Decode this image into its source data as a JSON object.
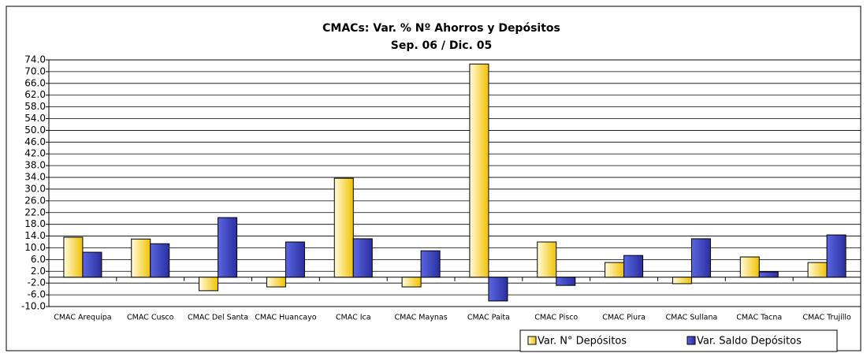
{
  "chart_data": {
    "type": "bar",
    "title": "CMACs: Var. % Nº Ahorros y Depósitos",
    "subtitle": "Sep. 06 / Dic. 05",
    "categories": [
      "CMAC Arequipa",
      "CMAC Cusco",
      "CMAC Del Santa",
      "CMAC Huancayo",
      "CMAC Ica",
      "CMAC Maynas",
      "CMAC Paita",
      "CMAC Pisco",
      "CMAC Piura",
      "CMAC Sullana",
      "CMAC Tacna",
      "CMAC Trujillo"
    ],
    "series": [
      {
        "name": "Var. N° Depósitos",
        "color": "#f2c200",
        "values": [
          13.6,
          13.0,
          -4.6,
          -3.3,
          33.7,
          -3.3,
          72.6,
          12.0,
          5.0,
          -2.2,
          6.9,
          5.0
        ]
      },
      {
        "name": "Var. Saldo Depósitos",
        "color": "#2a2fa0",
        "values": [
          8.5,
          11.4,
          20.3,
          12.0,
          13.1,
          9.0,
          -8.1,
          -2.8,
          7.4,
          13.1,
          1.8,
          14.4
        ]
      }
    ],
    "ylim": [
      -10,
      74
    ],
    "yticks": [
      {
        "value": -10,
        "label": "-10.0"
      },
      {
        "value": -6,
        "label": "-6.0"
      },
      {
        "value": -2,
        "label": "-2.0"
      },
      {
        "value": 2,
        "label": "2.0"
      },
      {
        "value": 6,
        "label": "6.0"
      },
      {
        "value": 10,
        "label": "10.0"
      },
      {
        "value": 14,
        "label": "14.0"
      },
      {
        "value": 18,
        "label": "18.0"
      },
      {
        "value": 22,
        "label": "22.0"
      },
      {
        "value": 26,
        "label": "26.0"
      },
      {
        "value": 30,
        "label": "30.0"
      },
      {
        "value": 34,
        "label": "34.0"
      },
      {
        "value": 38,
        "label": "38.0"
      },
      {
        "value": 42,
        "label": "42.0"
      },
      {
        "value": 46,
        "label": "46.0"
      },
      {
        "value": 50,
        "label": "50.0"
      },
      {
        "value": 54,
        "label": "54.0"
      },
      {
        "value": 58,
        "label": "58.0"
      },
      {
        "value": 62,
        "label": "62.0"
      },
      {
        "value": 66,
        "label": "66.0"
      },
      {
        "value": 70,
        "label": "70.0"
      },
      {
        "value": 74,
        "label": "74.0"
      }
    ],
    "grid": true,
    "legend": "bottom-right"
  }
}
